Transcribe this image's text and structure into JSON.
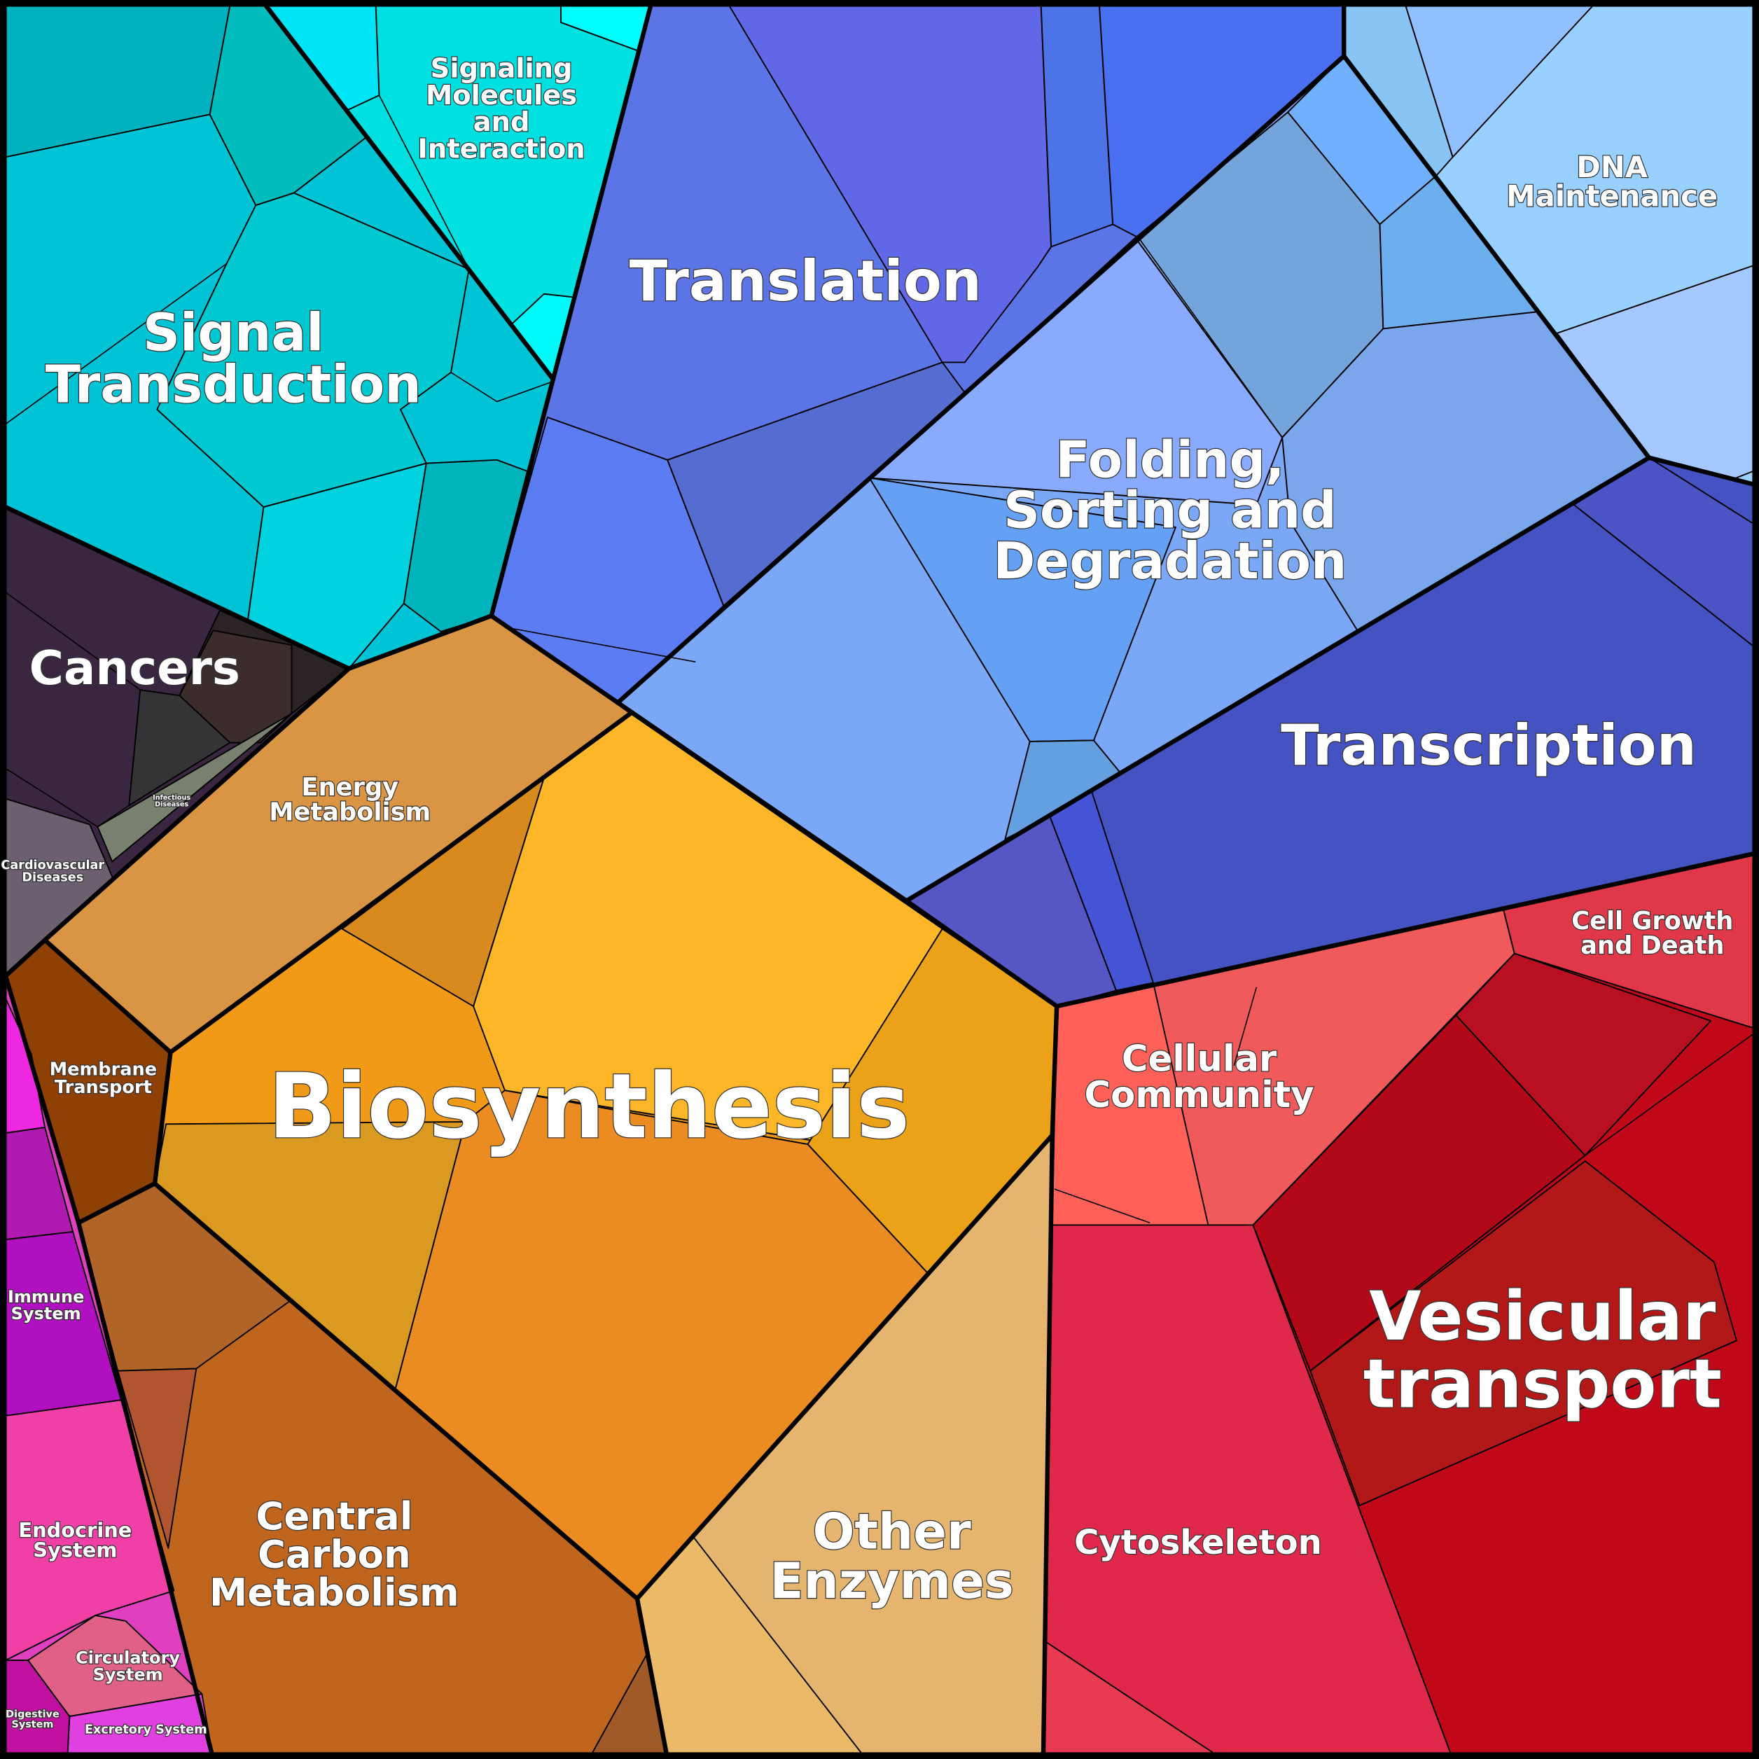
{
  "regions": [
    {
      "lines": [
        "Signaling",
        "Molecules",
        "and",
        "Interaction"
      ]
    },
    {
      "lines": [
        "Signal",
        "Transduction"
      ]
    },
    {
      "lines": [
        "Translation"
      ]
    },
    {
      "lines": [
        "DNA",
        "Maintenance"
      ]
    },
    {
      "lines": [
        "Folding,",
        "Sorting and",
        "Degradation"
      ]
    },
    {
      "lines": [
        "Cancers"
      ]
    },
    {
      "lines": [
        "Energy",
        "Metabolism"
      ]
    },
    {
      "lines": [
        "Infectious",
        "Diseases"
      ]
    },
    {
      "lines": [
        "Cardiovascular",
        "Diseases"
      ]
    },
    {
      "lines": [
        "Transcription"
      ]
    },
    {
      "lines": [
        "Cell Growth",
        "and Death"
      ]
    },
    {
      "lines": [
        "Cellular",
        "Community"
      ]
    },
    {
      "lines": [
        "Membrane",
        "Transport"
      ]
    },
    {
      "lines": [
        "Biosynthesis"
      ]
    },
    {
      "lines": [
        "Immune",
        "System"
      ]
    },
    {
      "lines": [
        "Vesicular",
        "transport"
      ]
    },
    {
      "lines": [
        "Endocrine",
        "System"
      ]
    },
    {
      "lines": [
        "Central",
        "Carbon",
        "Metabolism"
      ]
    },
    {
      "lines": [
        "Other",
        "Enzymes"
      ]
    },
    {
      "lines": [
        "Cytoskeleton"
      ]
    },
    {
      "lines": [
        "Circulatory",
        "System"
      ]
    },
    {
      "lines": [
        "Digestive",
        "System"
      ]
    },
    {
      "lines": [
        "Excretory System"
      ]
    }
  ]
}
